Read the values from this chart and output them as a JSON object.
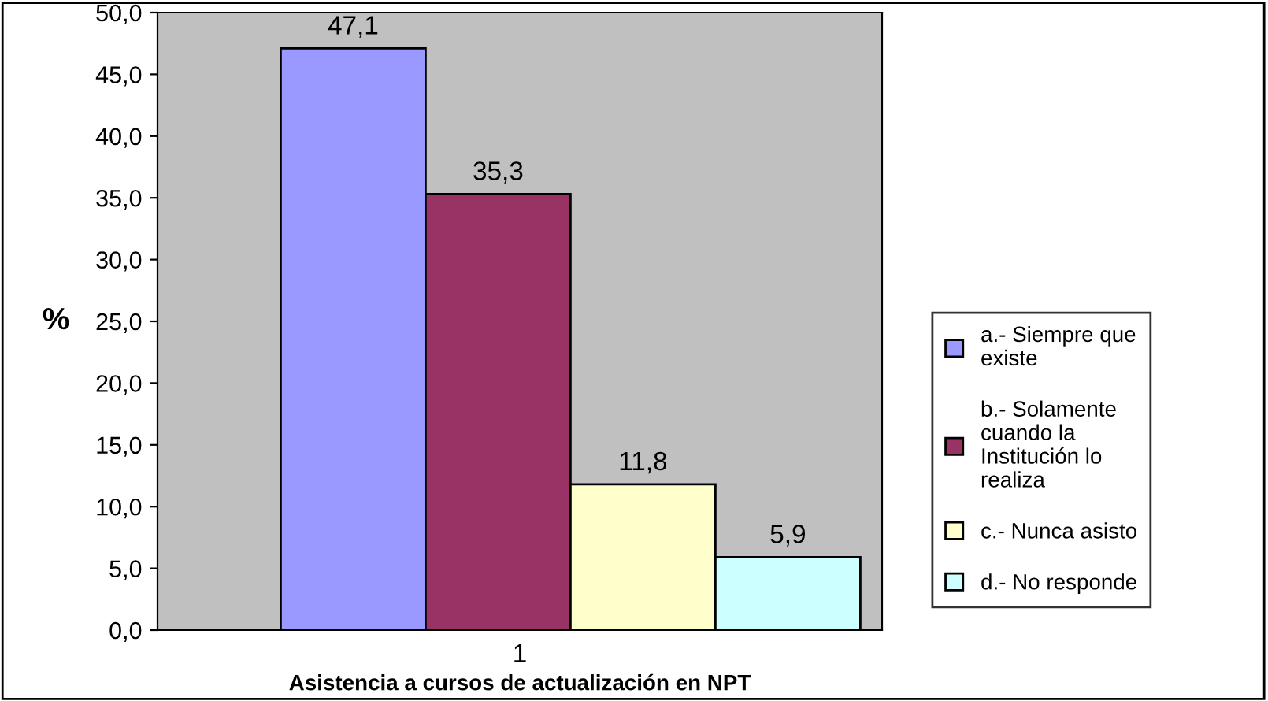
{
  "chart_data": {
    "type": "bar",
    "categories": [
      "1"
    ],
    "series": [
      {
        "name": "a.- Siempre que\nexiste",
        "color": "#9999ff",
        "values": [
          47.1
        ],
        "value_labels": [
          "47,1"
        ]
      },
      {
        "name": "b.- Solamente\ncuando la\nInstitución lo\nrealiza",
        "color": "#993366",
        "values": [
          35.3
        ],
        "value_labels": [
          "35,3"
        ]
      },
      {
        "name": "c.- Nunca asisto",
        "color": "#ffffcc",
        "values": [
          11.8
        ],
        "value_labels": [
          "11,8"
        ]
      },
      {
        "name": "d.- No responde",
        "color": "#ccffff",
        "values": [
          5.9
        ],
        "value_labels": [
          "5,9"
        ]
      }
    ],
    "ylabel": "%",
    "xlabel": "Asistencia a cursos de actualización en NPT",
    "ylim": [
      0,
      50
    ],
    "yticks": [
      {
        "value": 0,
        "label": "0,0"
      },
      {
        "value": 5,
        "label": "5,0"
      },
      {
        "value": 10,
        "label": "10,0"
      },
      {
        "value": 15,
        "label": "15,0"
      },
      {
        "value": 20,
        "label": "20,0"
      },
      {
        "value": 25,
        "label": "25,0"
      },
      {
        "value": 30,
        "label": "30,0"
      },
      {
        "value": 35,
        "label": "35,0"
      },
      {
        "value": 40,
        "label": "40,0"
      },
      {
        "value": 45,
        "label": "45,0"
      },
      {
        "value": 50,
        "label": "50,0"
      }
    ],
    "grid": false,
    "legend": "right"
  }
}
